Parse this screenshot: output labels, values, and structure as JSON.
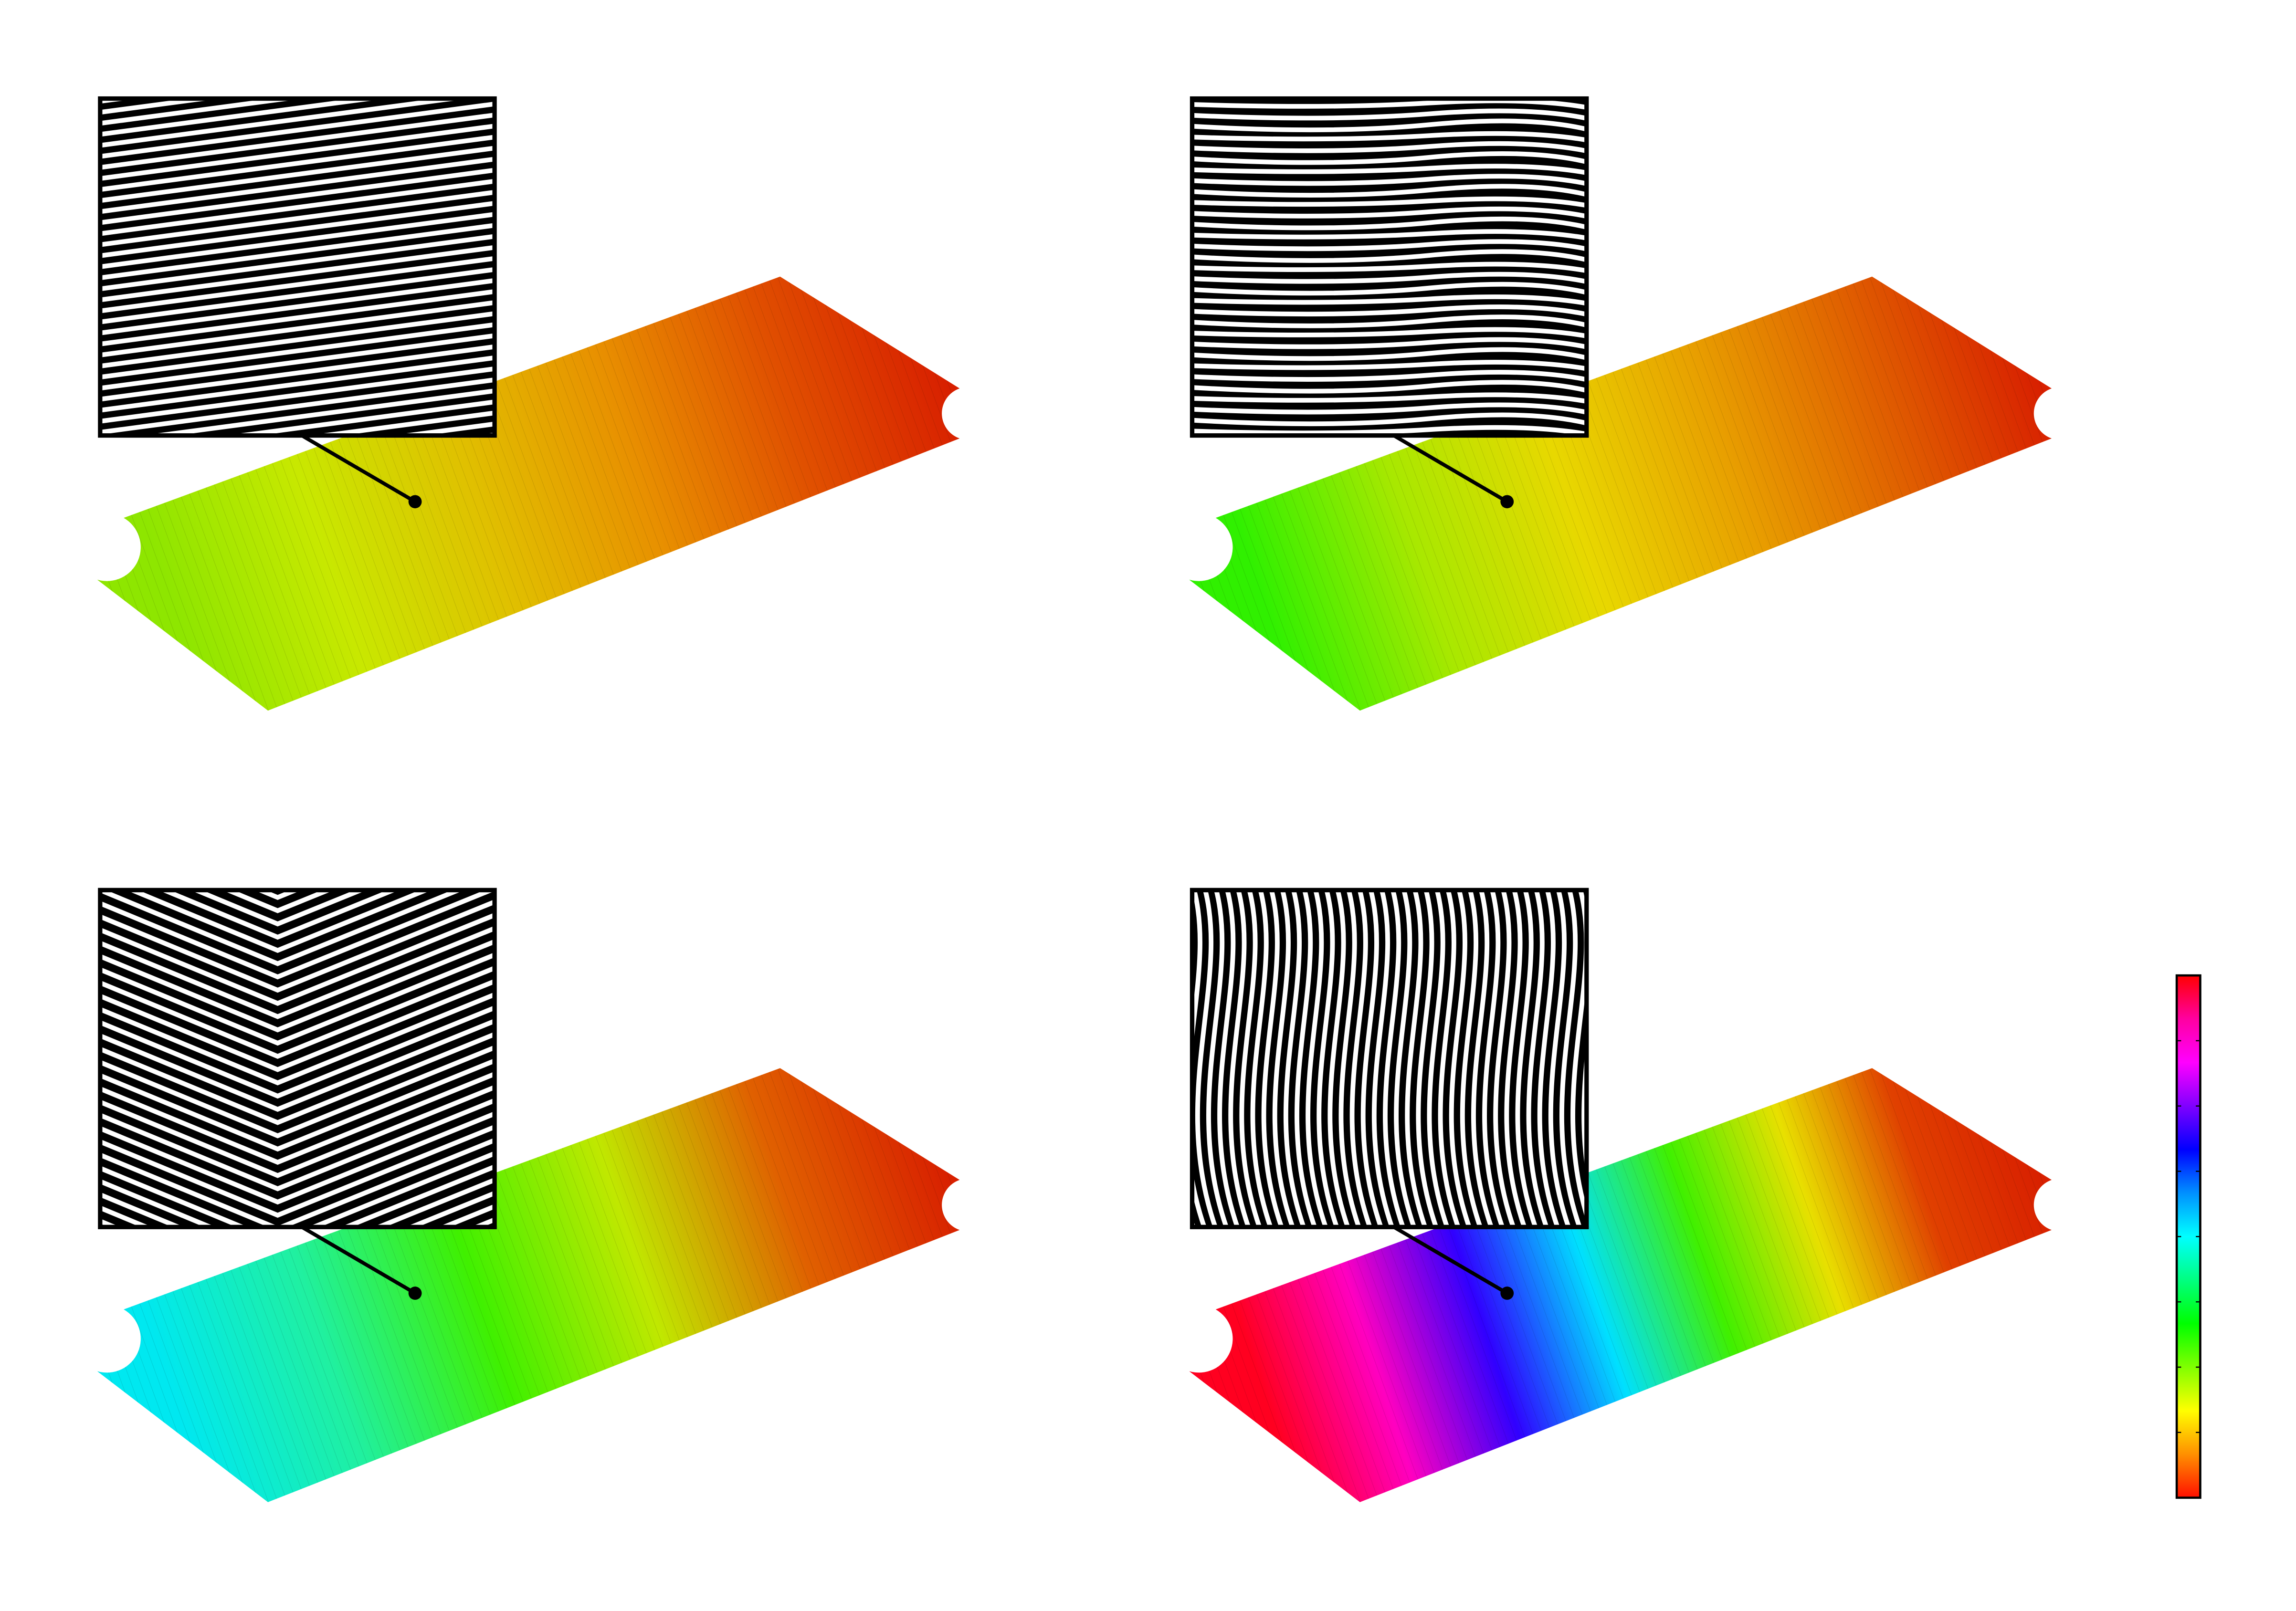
{
  "panels": [
    {
      "id": "top-left",
      "gradient": [
        "#8ee600",
        "#c8e800",
        "#e0c000",
        "#e89000",
        "#e05000",
        "#d82000"
      ],
      "inset_pattern": "tilted-stripes"
    },
    {
      "id": "top-right",
      "gradient": [
        "#30f000",
        "#a8e800",
        "#e8d800",
        "#e8a000",
        "#e06000",
        "#d82000"
      ],
      "inset_pattern": "horizontal-stripes"
    },
    {
      "id": "bottom-left",
      "gradient": [
        "#00e8f0",
        "#20f0a0",
        "#40f000",
        "#c0e800",
        "#e06000",
        "#d82000"
      ],
      "inset_pattern": "zigzag-stripes"
    },
    {
      "id": "bottom-right",
      "gradient": [
        "#ff0020",
        "#ff00c0",
        "#3000ff",
        "#00e0ff",
        "#40f000",
        "#e8e000",
        "#e04000",
        "#d82000"
      ],
      "inset_pattern": "vertical-wavy-stripes"
    }
  ],
  "colorbar": {
    "colors": [
      "#ff0000",
      "#ff00a0",
      "#ff00ff",
      "#8000ff",
      "#0000ff",
      "#0090ff",
      "#00ffff",
      "#00ff80",
      "#00ff00",
      "#80ff00",
      "#ffff00",
      "#ff9000",
      "#ff1000"
    ],
    "tick_count": 7
  }
}
